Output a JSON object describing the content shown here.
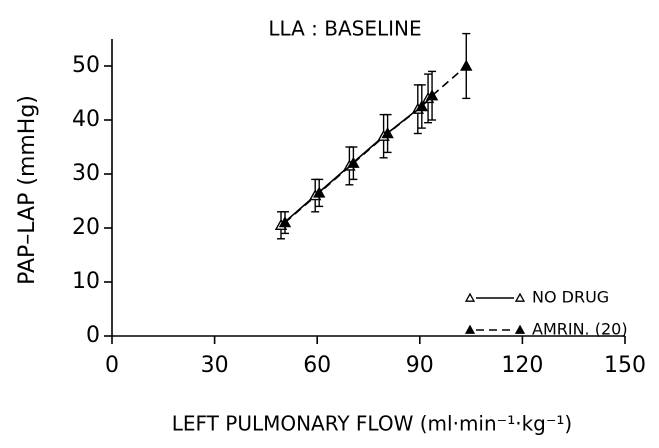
{
  "chart_data": {
    "type": "line",
    "title": "LLA : BASELINE",
    "xlabel": "LEFT PULMONARY FLOW (ml·min⁻¹·kg⁻¹)",
    "ylabel": "PAP–LAP (mmHg)",
    "xlim": [
      0,
      150
    ],
    "ylim": [
      0,
      55
    ],
    "xticks": [
      0,
      30,
      60,
      90,
      120,
      150
    ],
    "yticks": [
      0,
      10,
      20,
      30,
      40,
      50
    ],
    "series": [
      {
        "name": "NO DRUG",
        "marker": "open",
        "dash": false,
        "x": [
          50,
          60,
          70,
          80,
          90,
          93
        ],
        "values": [
          20.5,
          26,
          31.5,
          37,
          42,
          44
        ],
        "errors": [
          2.5,
          3,
          3.5,
          4,
          4.5,
          4.5
        ]
      },
      {
        "name": "AMRIN. (20)",
        "marker": "filled",
        "dash": true,
        "x": [
          50,
          60,
          70,
          80,
          90,
          93,
          103
        ],
        "values": [
          21,
          26.5,
          32,
          37.5,
          42.5,
          44.5,
          50
        ],
        "errors": [
          2,
          2.5,
          3,
          3.5,
          4,
          4.5,
          6
        ]
      }
    ]
  }
}
